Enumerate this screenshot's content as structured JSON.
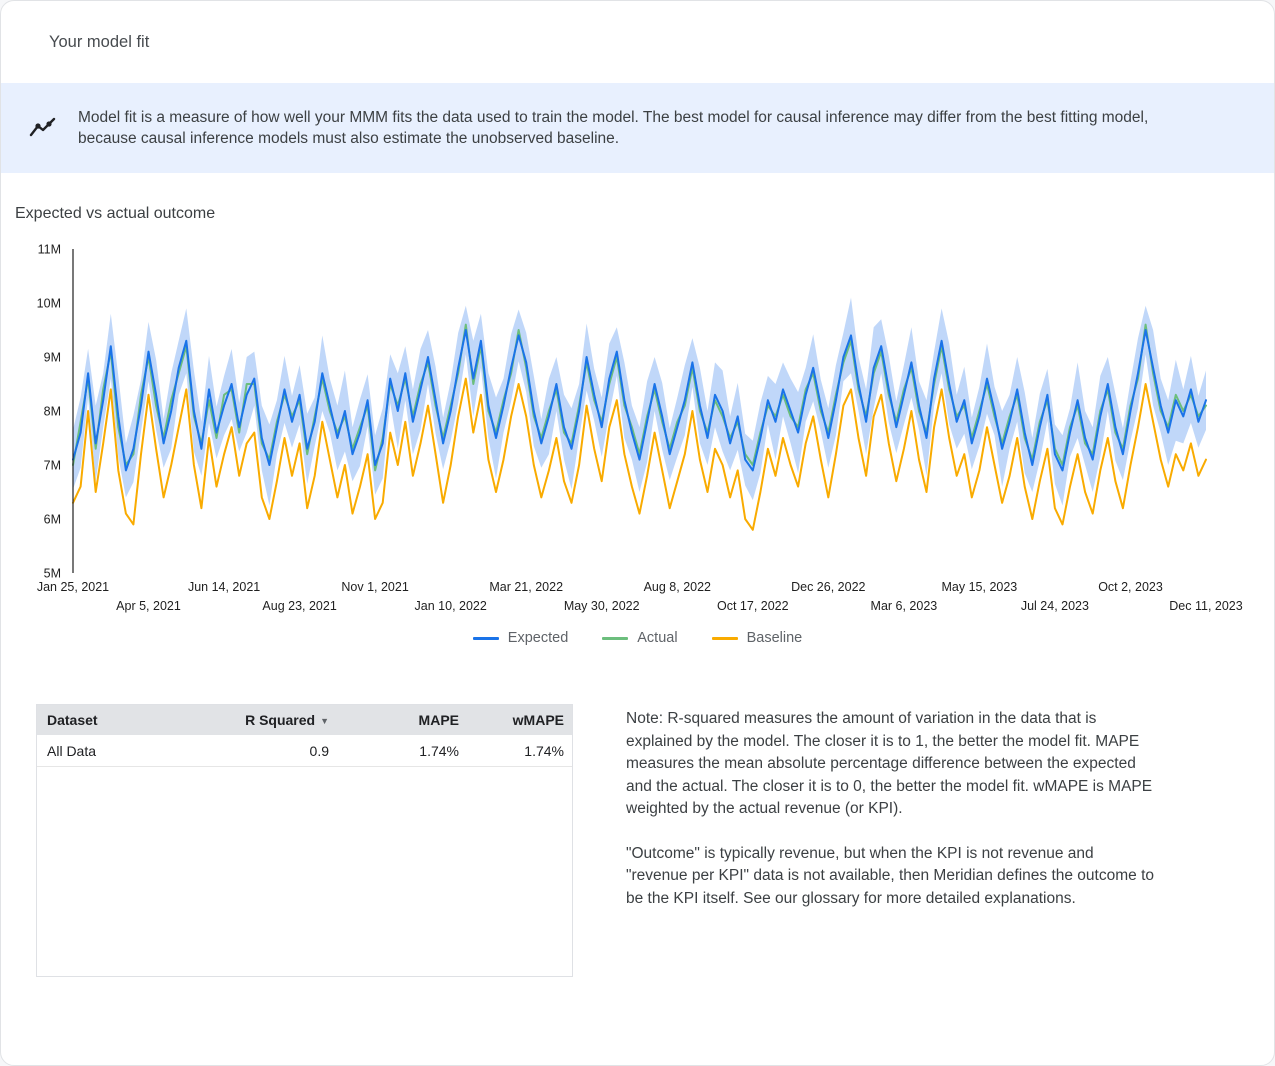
{
  "page": {
    "title": "Your model fit"
  },
  "banner": {
    "icon": "insights-icon",
    "text": "Model fit is a measure of how well your MMM fits the data used to train the model. The best model for causal inference may differ from the best fitting model, because causal inference models must also estimate the unobserved baseline."
  },
  "section": {
    "title": "Expected vs actual outcome"
  },
  "chart_data": {
    "type": "line",
    "title": "Expected vs actual outcome",
    "ylabel": "",
    "xlabel": "",
    "unit": "M",
    "ylim": [
      5,
      11
    ],
    "y_tick_labels": [
      "5M",
      "6M",
      "7M",
      "8M",
      "9M",
      "10M",
      "11M"
    ],
    "x_tick_interval_weeks": 10,
    "x_tick_labels": [
      "Jan 25, 2021",
      "Apr 5, 2021",
      "Jun 14, 2021",
      "Aug 23, 2021",
      "Nov 1, 2021",
      "Jan 10, 2022",
      "Mar 21, 2022",
      "May 30, 2022",
      "Aug 8, 2022",
      "Oct 17, 2022",
      "Dec 26, 2022",
      "Mar 6, 2023",
      "May 15, 2023",
      "Jul 24, 2023",
      "Oct 2, 2023",
      "Dec 11, 2023"
    ],
    "legend_position": "bottom",
    "grid": false,
    "series": [
      {
        "name": "Expected",
        "color": "#1a73e8",
        "values": [
          7.1,
          7.6,
          8.7,
          7.4,
          8.2,
          9.2,
          7.9,
          6.9,
          7.3,
          8.1,
          9.1,
          8.3,
          7.4,
          8.0,
          8.8,
          9.3,
          8.0,
          7.3,
          8.4,
          7.6,
          8.1,
          8.5,
          7.7,
          8.3,
          8.6,
          7.5,
          7.0,
          7.7,
          8.4,
          7.8,
          8.3,
          7.3,
          7.8,
          8.7,
          8.1,
          7.5,
          8.0,
          7.2,
          7.6,
          8.2,
          7.0,
          7.4,
          8.6,
          8.0,
          8.7,
          7.8,
          8.4,
          9.0,
          8.2,
          7.4,
          8.0,
          8.8,
          9.5,
          8.6,
          9.3,
          8.1,
          7.5,
          8.1,
          8.8,
          9.4,
          8.9,
          8.0,
          7.4,
          7.9,
          8.5,
          7.7,
          7.3,
          8.0,
          9.0,
          8.3,
          7.7,
          8.6,
          9.1,
          8.2,
          7.6,
          7.1,
          7.8,
          8.5,
          7.9,
          7.2,
          7.7,
          8.2,
          8.9,
          8.1,
          7.5,
          8.3,
          8.0,
          7.4,
          7.9,
          7.1,
          6.9,
          7.5,
          8.2,
          7.8,
          8.4,
          8.0,
          7.6,
          8.3,
          8.8,
          8.1,
          7.5,
          8.2,
          9.0,
          9.4,
          8.5,
          7.8,
          8.8,
          9.2,
          8.4,
          7.7,
          8.3,
          8.9,
          8.1,
          7.5,
          8.6,
          9.3,
          8.5,
          7.8,
          8.2,
          7.4,
          7.9,
          8.6,
          8.0,
          7.3,
          7.8,
          8.4,
          7.6,
          7.0,
          7.7,
          8.3,
          7.2,
          6.9,
          7.6,
          8.2,
          7.5,
          7.1,
          7.9,
          8.5,
          7.7,
          7.2,
          8.0,
          8.7,
          9.5,
          8.8,
          8.1,
          7.6,
          8.2,
          7.9,
          8.4,
          7.8,
          8.2
        ]
      },
      {
        "name": "Actual",
        "color": "#6cbe7d",
        "values": [
          7.0,
          7.8,
          8.6,
          7.3,
          8.4,
          9.1,
          7.7,
          7.0,
          7.2,
          8.3,
          9.0,
          8.1,
          7.5,
          8.2,
          8.7,
          9.2,
          7.9,
          7.4,
          8.2,
          7.5,
          8.3,
          8.4,
          7.6,
          8.5,
          8.5,
          7.4,
          7.1,
          7.8,
          8.3,
          7.9,
          8.2,
          7.2,
          7.9,
          8.6,
          8.0,
          7.6,
          7.9,
          7.3,
          7.7,
          8.1,
          6.9,
          7.5,
          8.5,
          8.1,
          8.6,
          7.9,
          8.5,
          8.9,
          8.1,
          7.5,
          8.1,
          8.7,
          9.6,
          8.5,
          9.2,
          8.0,
          7.6,
          8.2,
          8.7,
          9.5,
          8.8,
          7.9,
          7.5,
          8.0,
          8.4,
          7.6,
          7.4,
          8.1,
          8.9,
          8.2,
          7.8,
          8.5,
          9.0,
          8.1,
          7.7,
          7.2,
          7.9,
          8.4,
          7.8,
          7.3,
          7.8,
          8.1,
          8.8,
          8.0,
          7.6,
          8.2,
          7.9,
          7.5,
          7.8,
          7.2,
          7.0,
          7.6,
          8.1,
          7.9,
          8.3,
          7.9,
          7.7,
          8.4,
          8.7,
          8.0,
          7.6,
          8.3,
          8.9,
          9.3,
          8.4,
          7.9,
          8.7,
          9.1,
          8.3,
          7.8,
          8.4,
          8.8,
          8.0,
          7.6,
          8.5,
          9.2,
          8.4,
          7.9,
          8.1,
          7.5,
          8.0,
          8.5,
          7.9,
          7.4,
          7.9,
          8.3,
          7.5,
          7.1,
          7.8,
          8.2,
          7.3,
          7.0,
          7.7,
          8.1,
          7.4,
          7.2,
          8.0,
          8.4,
          7.6,
          7.3,
          8.1,
          8.6,
          9.6,
          8.7,
          8.0,
          7.7,
          8.3,
          8.0,
          8.3,
          7.9,
          8.1
        ]
      },
      {
        "name": "Baseline",
        "color": "#f9ab00",
        "values": [
          6.3,
          6.6,
          8.0,
          6.5,
          7.4,
          8.4,
          6.9,
          6.1,
          5.9,
          7.2,
          8.3,
          7.3,
          6.4,
          7.0,
          7.7,
          8.4,
          7.0,
          6.2,
          7.5,
          6.6,
          7.2,
          7.7,
          6.8,
          7.4,
          7.6,
          6.4,
          6.0,
          6.7,
          7.5,
          6.8,
          7.4,
          6.2,
          6.8,
          7.8,
          7.1,
          6.4,
          7.0,
          6.1,
          6.6,
          7.2,
          6.0,
          6.3,
          7.6,
          7.0,
          7.8,
          6.8,
          7.4,
          8.1,
          7.2,
          6.3,
          7.0,
          7.9,
          8.6,
          7.6,
          8.3,
          7.1,
          6.5,
          7.1,
          7.9,
          8.5,
          7.9,
          7.0,
          6.4,
          6.9,
          7.5,
          6.7,
          6.3,
          7.0,
          8.1,
          7.3,
          6.7,
          7.7,
          8.2,
          7.2,
          6.6,
          6.1,
          6.8,
          7.6,
          6.9,
          6.2,
          6.7,
          7.2,
          8.0,
          7.1,
          6.5,
          7.3,
          7.0,
          6.4,
          6.9,
          6.0,
          5.8,
          6.5,
          7.3,
          6.8,
          7.5,
          7.0,
          6.6,
          7.4,
          7.9,
          7.1,
          6.4,
          7.2,
          8.1,
          8.4,
          7.5,
          6.8,
          7.9,
          8.3,
          7.4,
          6.7,
          7.3,
          8.0,
          7.1,
          6.5,
          7.7,
          8.4,
          7.5,
          6.8,
          7.2,
          6.4,
          6.9,
          7.7,
          7.0,
          6.3,
          6.8,
          7.5,
          6.6,
          6.0,
          6.7,
          7.3,
          6.2,
          5.9,
          6.6,
          7.2,
          6.5,
          6.1,
          6.9,
          7.5,
          6.7,
          6.2,
          7.0,
          7.7,
          8.5,
          7.8,
          7.1,
          6.6,
          7.2,
          6.9,
          7.4,
          6.8,
          7.1
        ]
      }
    ],
    "band": {
      "name": "Expected credible interval",
      "color": "#a8c7f7",
      "halfwidth": [
        0.55,
        0.65,
        0.45,
        0.7,
        0.5,
        0.6,
        0.75,
        0.5,
        0.62,
        0.48,
        0.55,
        0.65,
        0.45,
        0.7,
        0.5,
        0.6,
        0.75,
        0.5,
        0.62,
        0.48,
        0.55,
        0.65,
        0.45,
        0.7,
        0.5,
        0.6,
        0.75,
        0.5,
        0.62,
        0.48,
        0.55,
        0.65,
        0.45,
        0.7,
        0.5,
        0.6,
        0.75,
        0.5,
        0.62,
        0.48,
        0.55,
        0.65,
        0.45,
        0.7,
        0.5,
        0.6,
        0.75,
        0.5,
        0.62,
        0.48,
        0.55,
        0.65,
        0.45,
        0.7,
        0.5,
        0.6,
        0.75,
        0.5,
        0.62,
        0.48,
        0.55,
        0.65,
        0.45,
        0.7,
        0.5,
        0.6,
        0.75,
        0.5,
        0.62,
        0.48,
        0.55,
        0.65,
        0.45,
        0.7,
        0.5,
        0.6,
        0.75,
        0.5,
        0.62,
        0.48,
        0.55,
        0.65,
        0.45,
        0.7,
        0.5,
        0.6,
        0.75,
        0.5,
        0.62,
        0.48,
        0.55,
        0.65,
        0.45,
        0.7,
        0.5,
        0.6,
        0.75,
        0.5,
        0.62,
        0.48,
        0.55,
        0.65,
        0.45,
        0.7,
        0.5,
        0.6,
        0.75,
        0.5,
        0.62,
        0.48,
        0.55,
        0.65,
        0.45,
        0.7,
        0.5,
        0.6,
        0.75,
        0.5,
        0.62,
        0.48,
        0.55,
        0.65,
        0.45,
        0.7,
        0.5,
        0.6,
        0.75,
        0.5,
        0.62,
        0.48,
        0.55,
        0.65,
        0.45,
        0.7,
        0.5,
        0.6,
        0.75,
        0.5,
        0.62,
        0.48,
        0.55,
        0.65,
        0.45,
        0.7,
        0.5,
        0.6,
        0.75,
        0.5,
        0.62,
        0.48,
        0.55
      ]
    },
    "legend": [
      "Expected",
      "Actual",
      "Baseline"
    ]
  },
  "table": {
    "headers": [
      "Dataset",
      "R Squared",
      "MAPE",
      "wMAPE"
    ],
    "sort_column": "R Squared",
    "sort_icon": "▼",
    "rows": [
      [
        "All Data",
        "0.9",
        "1.74%",
        "1.74%"
      ]
    ]
  },
  "note": {
    "paragraph1": "Note: R-squared measures the amount of variation in the data that is explained by the model. The closer it is to 1, the better the model fit. MAPE measures the mean absolute percentage difference between the expected and the actual. The closer it is to 0, the better the model fit. wMAPE is MAPE weighted by the actual revenue (or KPI).",
    "paragraph2": "\"Outcome\" is typically revenue, but when the KPI is not revenue and \"revenue per KPI\" data is not available, then Meridian defines the outcome to be the KPI itself. See our glossary for more detailed explanations."
  }
}
